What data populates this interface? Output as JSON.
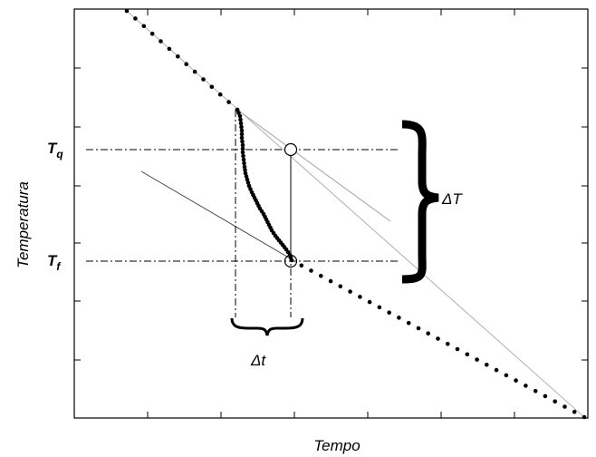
{
  "labels": {
    "y_axis": "Temperatura",
    "x_axis": "Tempo",
    "t_q_main": "T",
    "t_q_sub": "q",
    "t_f_main": "T",
    "t_f_sub": "f",
    "delta_T": "ΔT",
    "delta_t": "Δt"
  },
  "colors": {
    "ink": "#000000",
    "guide_line": "#b0b0b0",
    "frame": "#000000"
  }
}
